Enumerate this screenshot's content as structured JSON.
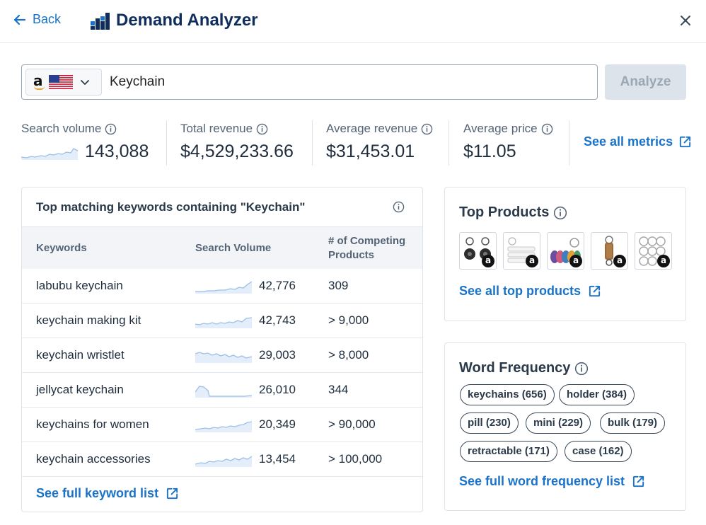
{
  "header": {
    "back_label": "Back",
    "title": "Demand Analyzer"
  },
  "search": {
    "marketplace_logo": "a",
    "query": "Keychain",
    "analyze_label": "Analyze"
  },
  "metrics": [
    {
      "label": "Search volume",
      "value": "143,088"
    },
    {
      "label": "Total revenue",
      "value": "$4,529,233.66"
    },
    {
      "label": "Average revenue",
      "value": "$31,453.01"
    },
    {
      "label": "Average price",
      "value": "$11.05"
    }
  ],
  "see_all_metrics_label": "See all metrics",
  "keywords_panel": {
    "title": "Top matching keywords containing \"Keychain\"",
    "columns": [
      "Keywords",
      "Search Volume",
      "# of Competing",
      "Products"
    ],
    "rows": [
      {
        "keyword": "labubu keychain",
        "volume": "42,776",
        "competing": "309"
      },
      {
        "keyword": "keychain making kit",
        "volume": "42,743",
        "competing": "> 9,000"
      },
      {
        "keyword": "keychain wristlet",
        "volume": "29,003",
        "competing": "> 8,000"
      },
      {
        "keyword": "jellycat keychain",
        "volume": "26,010",
        "competing": "344"
      },
      {
        "keyword": "keychains for women",
        "volume": "20,349",
        "competing": "> 90,000"
      },
      {
        "keyword": "keychain accessories",
        "volume": "13,454",
        "competing": "> 100,000"
      }
    ],
    "see_full_label": "See full keyword list"
  },
  "top_products": {
    "title": "Top Products",
    "badge": "a",
    "see_all_label": "See all top products"
  },
  "word_frequency": {
    "title": "Word Frequency",
    "chips": [
      "keychains (656)",
      "holder (384)",
      "pill (230)",
      "mini (229)",
      "bulk (179)",
      "retractable (171)",
      "case (162)"
    ],
    "see_full_label": "See full word frequency list"
  },
  "colors": {
    "accent": "#1a73c8",
    "title_navy": "#0f2d5c",
    "sparkline": "#9cbfe8",
    "border": "#dfe4ea"
  }
}
